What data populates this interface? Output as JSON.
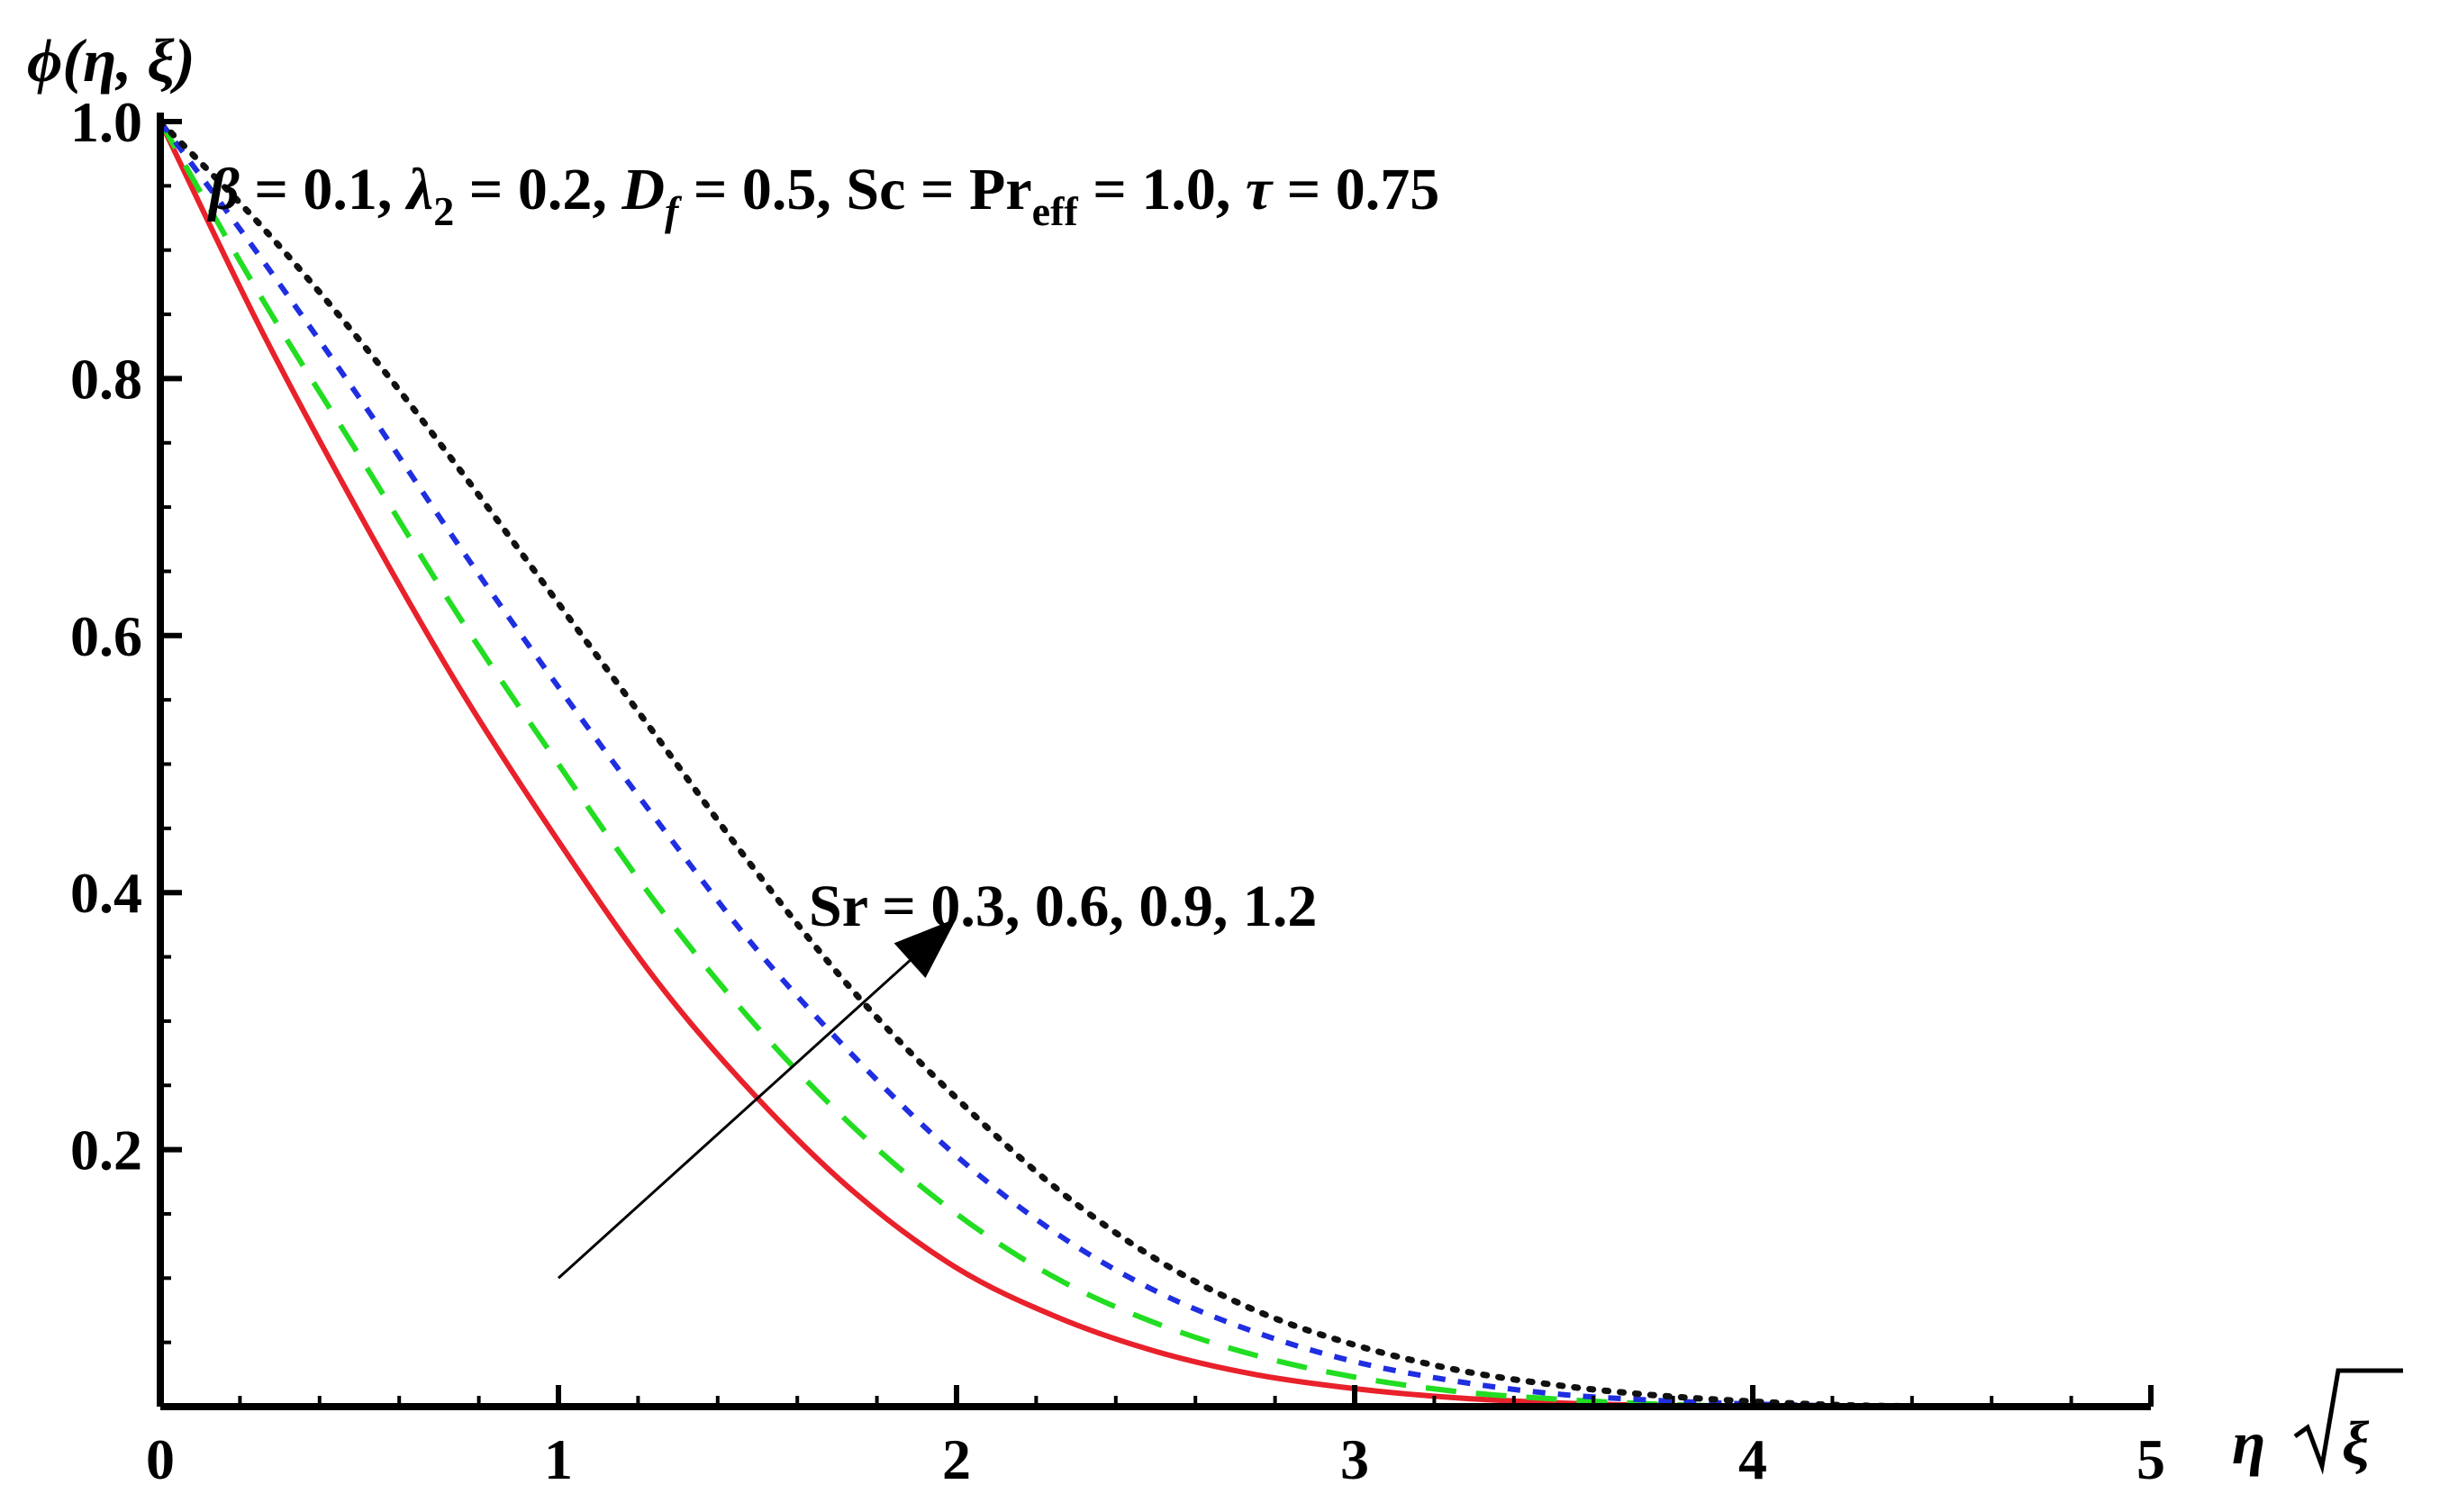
{
  "chart_data": {
    "type": "line",
    "title": "",
    "ylabel": {
      "main": "ϕ(η, ξ)"
    },
    "xlabel": {
      "pre": "η",
      "radicand": "ξ"
    },
    "xlim": [
      0,
      5
    ],
    "ylim": [
      0,
      1.0
    ],
    "x_ticks": [
      {
        "value": 0,
        "label": "0"
      },
      {
        "value": 1,
        "label": "1"
      },
      {
        "value": 2,
        "label": "2"
      },
      {
        "value": 3,
        "label": "3"
      },
      {
        "value": 4,
        "label": "4"
      },
      {
        "value": 5,
        "label": "5"
      }
    ],
    "y_ticks": [
      {
        "value": 0.2,
        "label": "0.2"
      },
      {
        "value": 0.4,
        "label": "0.4"
      },
      {
        "value": 0.6,
        "label": "0.6"
      },
      {
        "value": 0.8,
        "label": "0.8"
      },
      {
        "value": 1.0,
        "label": "1.0"
      }
    ],
    "grid": false,
    "legend": "none",
    "parameters": {
      "parts": [
        {
          "text": "β",
          "italic": true
        },
        {
          "text": " = 0.1, "
        },
        {
          "text": "λ",
          "italic": true
        },
        {
          "text": "2",
          "sub": true
        },
        {
          "text": " = 0.2, "
        },
        {
          "text": "D",
          "italic": true
        },
        {
          "text": "f",
          "sub": true,
          "italic": true
        },
        {
          "text": " = 0.5, Sc = Pr"
        },
        {
          "text": "eff",
          "sub": true
        },
        {
          "text": " = 1.0, "
        },
        {
          "text": "τ",
          "italic": true
        },
        {
          "text": " = 0.75"
        }
      ]
    },
    "arrow_annotation": {
      "text": "Sr = 0.3, 0.6, 0.9, 1.2",
      "from": [
        1.0,
        0.1
      ],
      "to": [
        2.0,
        0.38
      ]
    },
    "series": [
      {
        "style": "solid",
        "color": "#e8212b",
        "x": [
          0,
          0.25,
          0.5,
          0.75,
          1.0,
          1.25,
          1.5,
          1.75,
          2.0,
          2.25,
          2.5,
          2.75,
          3.0,
          3.25,
          3.5,
          3.75,
          4.0
        ],
        "y": [
          1.0,
          0.84,
          0.695,
          0.56,
          0.44,
          0.33,
          0.24,
          0.165,
          0.108,
          0.07,
          0.043,
          0.025,
          0.014,
          0.007,
          0.003,
          0.001,
          0.0
        ]
      },
      {
        "style": "dashed",
        "color": "#22dd22",
        "x": [
          0,
          0.25,
          0.5,
          0.75,
          1.0,
          1.25,
          1.5,
          1.75,
          2.0,
          2.25,
          2.5,
          2.75,
          3.0,
          3.25,
          3.5,
          3.75,
          4.0
        ],
        "y": [
          1.0,
          0.865,
          0.74,
          0.615,
          0.5,
          0.39,
          0.295,
          0.215,
          0.15,
          0.1,
          0.065,
          0.04,
          0.023,
          0.012,
          0.006,
          0.002,
          0.0
        ]
      },
      {
        "style": "short-dashed",
        "color": "#1f2ee0",
        "x": [
          0,
          0.25,
          0.5,
          0.75,
          1.0,
          1.25,
          1.5,
          1.75,
          2.0,
          2.25,
          2.5,
          2.75,
          3.0,
          3.25,
          3.5,
          3.75,
          4.0,
          4.25,
          4.5
        ],
        "y": [
          1.0,
          0.895,
          0.785,
          0.67,
          0.56,
          0.455,
          0.355,
          0.27,
          0.195,
          0.135,
          0.09,
          0.058,
          0.035,
          0.02,
          0.01,
          0.005,
          0.002,
          0.0005,
          0.0
        ]
      },
      {
        "style": "dotted",
        "color": "#111111",
        "x": [
          0,
          0.25,
          0.5,
          0.75,
          1.0,
          1.25,
          1.5,
          1.75,
          2.0,
          2.25,
          2.5,
          2.75,
          3.0,
          3.25,
          3.5,
          3.75,
          4.0,
          4.25,
          4.5
        ],
        "y": [
          1.0,
          0.92,
          0.83,
          0.73,
          0.625,
          0.52,
          0.415,
          0.32,
          0.24,
          0.17,
          0.115,
          0.075,
          0.048,
          0.029,
          0.017,
          0.009,
          0.004,
          0.001,
          0.0
        ]
      }
    ]
  }
}
